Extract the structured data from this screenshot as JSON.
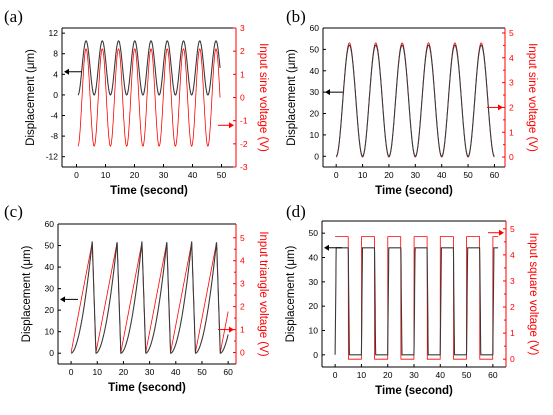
{
  "figure": {
    "colors": {
      "displacement": "#3a3a3a",
      "voltage": "#ff0000",
      "axis": "#000000",
      "voltage_axis": "#ff0000"
    },
    "shared_x_label": "Time (second)",
    "shared_y_label": "Displacement (μm)"
  },
  "chart_data": [
    {
      "type": "line",
      "panel_label": "(a)",
      "xlabel": "Time (second)",
      "ylabel": "Displacement (μm)",
      "y2label": "Input sine voltage (V)",
      "xlim": [
        -5,
        55
      ],
      "ylim": [
        -14,
        13
      ],
      "y2lim": [
        -3,
        3
      ],
      "xticks": [
        0,
        10,
        20,
        30,
        40,
        50
      ],
      "yticks": [
        -12,
        -8,
        -4,
        0,
        4,
        8,
        12
      ],
      "y2ticks": [
        -3,
        -2,
        -1,
        0,
        1,
        2,
        3
      ],
      "arrows": {
        "left_axis_at": 4.5,
        "right_axis_at": -1.2
      },
      "series": [
        {
          "axis": "left",
          "waveform": "sine",
          "period": 5.6,
          "t_start": 0.5,
          "t_end": 49.5,
          "min": 0,
          "max": 10.5
        },
        {
          "axis": "right",
          "waveform": "sine",
          "period": 5.6,
          "t_start": 0.5,
          "t_end": 49.5,
          "min": -2.1,
          "max": 2.1
        }
      ]
    },
    {
      "type": "line",
      "panel_label": "(b)",
      "xlabel": "Time (second)",
      "ylabel": "Displacement (μm)",
      "y2label": "Input sine voltage (V)",
      "xlim": [
        -5,
        64
      ],
      "ylim": [
        -5,
        60
      ],
      "y2lim": [
        -0.4,
        5.2
      ],
      "xticks": [
        0,
        10,
        20,
        30,
        40,
        50,
        60
      ],
      "yticks": [
        0,
        10,
        20,
        30,
        40,
        50,
        60
      ],
      "y2ticks": [
        0,
        0.5,
        1,
        1.5,
        2,
        2.5,
        3,
        3.5,
        4,
        4.5,
        5
      ],
      "y2ticklabels": [
        "0",
        "",
        "1",
        "",
        "2",
        "",
        "3",
        "",
        "4",
        "",
        "5"
      ],
      "arrows": {
        "left_axis_at": 30,
        "right_axis_at": 2
      },
      "series": [
        {
          "axis": "left",
          "waveform": "sine",
          "period": 10,
          "t_start": 0,
          "t_end": 60,
          "min": 0,
          "max": 52
        },
        {
          "axis": "right",
          "waveform": "sine",
          "period": 10,
          "t_start": 0,
          "t_end": 60,
          "min": 0,
          "max": 4.6
        }
      ]
    },
    {
      "type": "line",
      "panel_label": "(c)",
      "xlabel": "Time (second)",
      "ylabel": "Displacement (μm)",
      "y2label": "Input triangle voltage (V)",
      "xlim": [
        -5,
        63
      ],
      "ylim": [
        -5,
        60
      ],
      "y2lim": [
        -0.5,
        5.6
      ],
      "xticks": [
        0,
        10,
        20,
        30,
        40,
        50,
        60
      ],
      "yticks": [
        0,
        10,
        20,
        30,
        40,
        50,
        60
      ],
      "y2ticks": [
        0,
        0.5,
        1,
        1.5,
        2,
        2.5,
        3,
        3.5,
        4,
        4.5,
        5
      ],
      "y2ticklabels": [
        "0",
        "",
        "1",
        "",
        "2",
        "",
        "3",
        "",
        "4",
        "",
        "5"
      ],
      "arrows": {
        "left_axis_at": 25,
        "right_axis_at": 1
      },
      "series": [
        {
          "axis": "left",
          "waveform": "sawtooth",
          "period": 9.5,
          "t_start": 0,
          "t_end": 60,
          "min": 0,
          "max": 52
        },
        {
          "axis": "right",
          "waveform": "sawtooth",
          "period": 9.5,
          "t_start": 0,
          "t_end": 60,
          "min": 0,
          "max": 4.8
        }
      ]
    },
    {
      "type": "line",
      "panel_label": "(d)",
      "xlabel": "Time (second)",
      "ylabel": "Displacement (μm)",
      "y2label": "Input square voltage (V)",
      "xlim": [
        -5,
        65
      ],
      "ylim": [
        -5,
        55
      ],
      "y2lim": [
        -0.3,
        5.3
      ],
      "xticks": [
        0,
        10,
        20,
        30,
        40,
        50,
        60
      ],
      "yticks": [
        0,
        10,
        20,
        30,
        40,
        50
      ],
      "y2ticks": [
        0,
        0.5,
        1,
        1.5,
        2,
        2.5,
        3,
        3.5,
        4,
        4.5,
        5
      ],
      "y2ticklabels": [
        "0",
        "",
        "1",
        "",
        "2",
        "",
        "3",
        "",
        "4",
        "",
        "5"
      ],
      "arrows": {
        "left_axis_at": 44,
        "right_axis_at": 4.85
      },
      "series": [
        {
          "axis": "left",
          "waveform": "square",
          "period": 10,
          "t_start": 0,
          "t_end": 62,
          "min": 0,
          "max": 44
        },
        {
          "axis": "right",
          "waveform": "square",
          "period": 10,
          "t_start": 0,
          "t_end": 62,
          "min": 0,
          "max": 4.7
        }
      ]
    }
  ]
}
